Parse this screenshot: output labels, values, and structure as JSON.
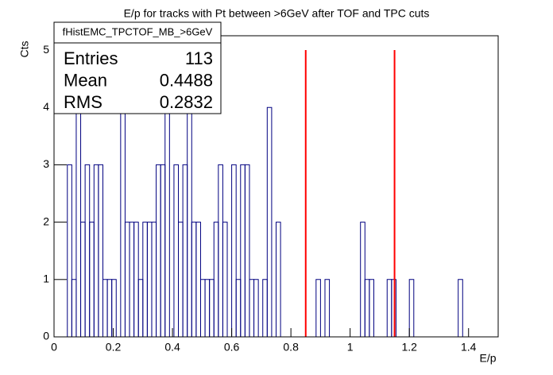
{
  "chart_data": {
    "type": "histogram",
    "title": "E/p for tracks with Pt between >6GeV after TOF and TPC cuts",
    "x_label": "E/p",
    "y_label": "Cts",
    "bins": [
      0,
      0.015,
      0.03,
      0.045,
      0.06,
      0.075,
      0.09,
      0.105,
      0.12,
      0.135,
      0.15,
      0.165,
      0.18,
      0.195,
      0.21,
      0.225,
      0.24,
      0.255,
      0.27,
      0.285,
      0.3,
      0.315,
      0.33,
      0.345,
      0.36,
      0.375,
      0.39,
      0.405,
      0.42,
      0.435,
      0.45,
      0.465,
      0.48,
      0.495,
      0.51,
      0.525,
      0.54,
      0.555,
      0.57,
      0.585,
      0.6,
      0.615,
      0.63,
      0.645,
      0.66,
      0.675,
      0.69,
      0.705,
      0.72,
      0.735,
      0.75,
      0.765,
      0.78,
      0.795,
      0.81,
      0.825,
      0.84,
      0.855,
      0.87,
      0.885,
      0.9,
      0.915,
      0.93,
      0.945,
      0.96,
      0.975,
      0.99,
      1.005,
      1.02,
      1.035,
      1.05,
      1.065,
      1.08,
      1.095,
      1.11,
      1.125,
      1.14,
      1.155,
      1.17,
      1.185,
      1.2,
      1.215,
      1.23,
      1.245,
      1.26,
      1.275,
      1.29,
      1.305,
      1.32,
      1.335,
      1.35,
      1.365,
      1.38,
      1.395,
      1.41,
      1.425,
      1.44,
      1.455,
      1.47,
      1.485,
      1.5
    ],
    "values": [
      0,
      0,
      0,
      3,
      1,
      4,
      2,
      3,
      2,
      3,
      3,
      1,
      1,
      1,
      0,
      4,
      2,
      2,
      2,
      1,
      2,
      2,
      2,
      3,
      3,
      4,
      0,
      3,
      2,
      3,
      4,
      2,
      2,
      1,
      1,
      1,
      2,
      3,
      2,
      0,
      3,
      1,
      3,
      3,
      1,
      1,
      0,
      1,
      4,
      0,
      2,
      0,
      0,
      0,
      0,
      0,
      0,
      0,
      0,
      1,
      0,
      1,
      0,
      0,
      0,
      0,
      0,
      0,
      0,
      2,
      1,
      1,
      0,
      0,
      0,
      1,
      1,
      0,
      0,
      0,
      1,
      0,
      0,
      0,
      0,
      0,
      0,
      0,
      0,
      0,
      0,
      1,
      0,
      0,
      0,
      0,
      0,
      0,
      0,
      0
    ],
    "color": "#000080",
    "cut_lines": [
      0.85,
      1.15
    ],
    "cut_line_top": 5,
    "cut_line_color": "#ff0000",
    "xlim": [
      0,
      1.5
    ],
    "ylim": [
      0,
      5.25
    ],
    "xticks": [
      0,
      0.2,
      0.4,
      0.6,
      0.8,
      1,
      1.2,
      1.4
    ],
    "yticks": [
      0,
      1,
      2,
      3,
      4,
      5
    ],
    "stats": {
      "name": "fHistEMC_TPCTOF_MB_>6GeV",
      "rows": [
        {
          "label": "Entries",
          "value": 113
        },
        {
          "label": "Mean",
          "value": 0.4488
        },
        {
          "label": "RMS",
          "value": 0.2832
        }
      ]
    }
  }
}
